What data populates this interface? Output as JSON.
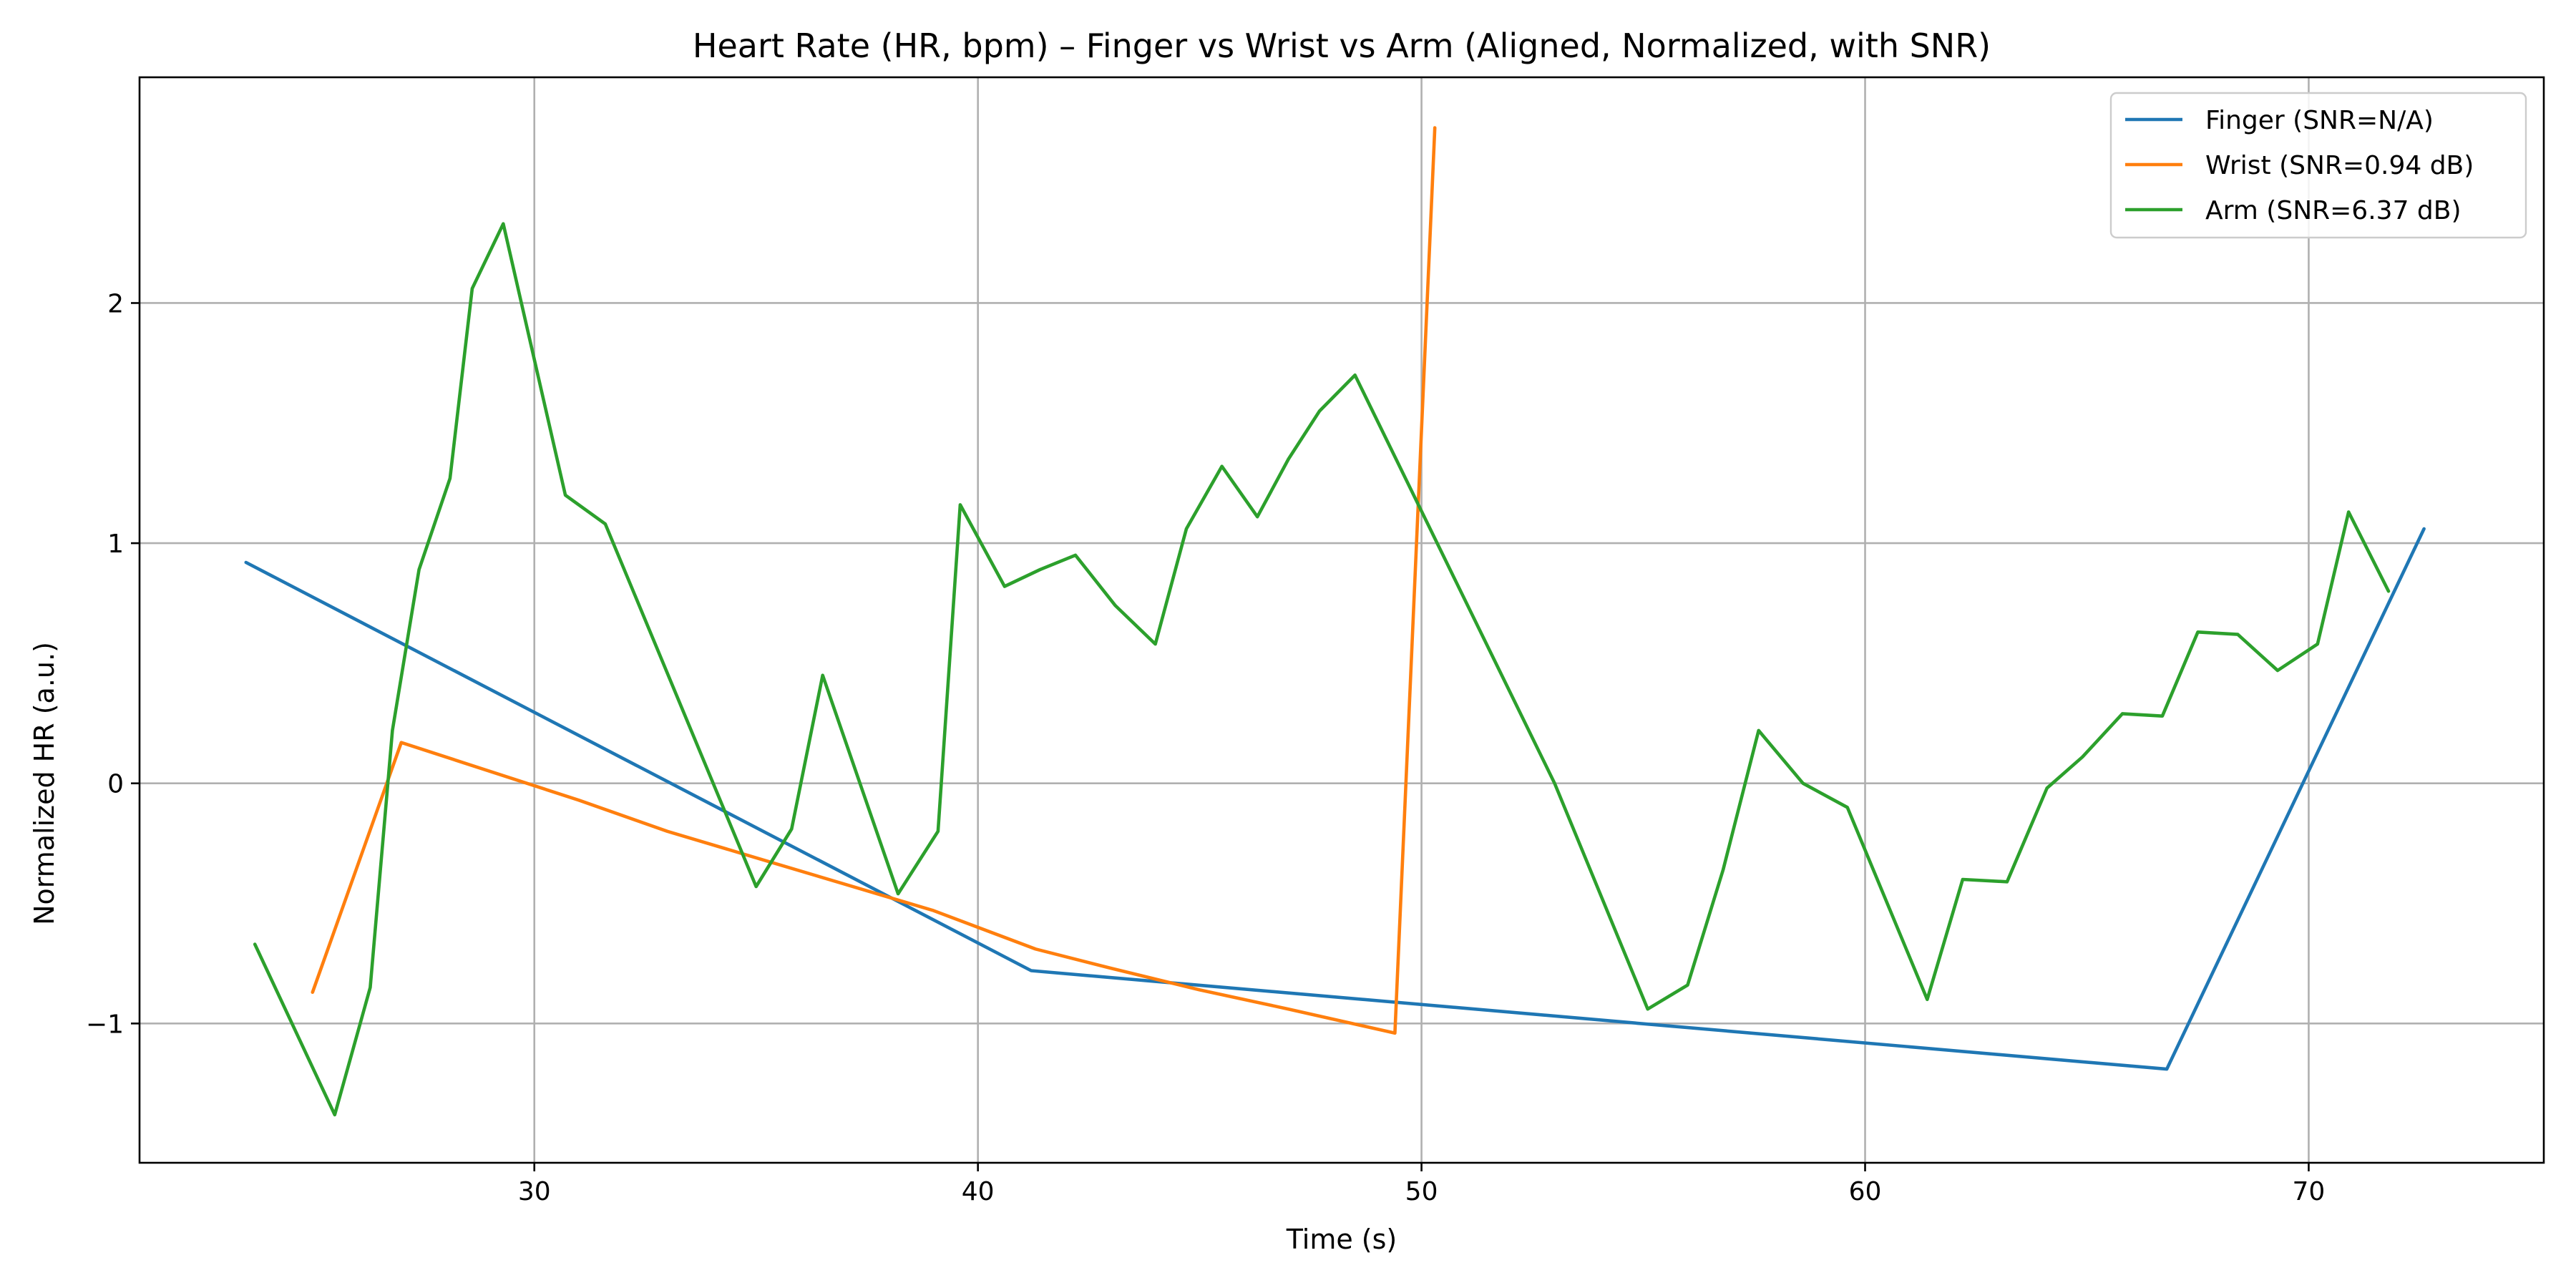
{
  "chart_data": {
    "type": "line",
    "title": "Heart Rate (HR, bpm) – Finger vs Wrist vs Arm (Aligned, Normalized, with SNR)",
    "xlabel": "Time (s)",
    "ylabel": "Normalized HR (a.u.)",
    "xlim": [
      21.1,
      75.3
    ],
    "ylim": [
      -1.58,
      2.94
    ],
    "xticks": [
      30,
      40,
      50,
      60,
      70
    ],
    "yticks": [
      -1,
      0,
      1,
      2
    ],
    "xtick_labels": [
      "30",
      "40",
      "50",
      "60",
      "70"
    ],
    "ytick_labels": [
      "−1",
      "0",
      "1",
      "2"
    ],
    "grid": true,
    "legend_position": "top-right",
    "series": [
      {
        "name": "Finger (SNR=N/A)",
        "color": "#1f77b4",
        "x": [
          23.5,
          41.2,
          66.8,
          72.6
        ],
        "y": [
          0.92,
          -0.78,
          -1.19,
          1.06
        ]
      },
      {
        "name": "Wrist (SNR=0.94 dB)",
        "color": "#ff7f0e",
        "x": [
          25.0,
          27.0,
          29.0,
          31.0,
          33.0,
          35.0,
          37.0,
          39.0,
          41.3,
          43.0,
          45.0,
          47.0,
          49.4,
          50.3
        ],
        "y": [
          -0.87,
          0.17,
          0.05,
          -0.07,
          -0.2,
          -0.31,
          -0.42,
          -0.53,
          -0.69,
          -0.77,
          -0.86,
          -0.94,
          -1.04,
          2.73
        ]
      },
      {
        "name": "Arm (SNR=6.37 dB)",
        "color": "#2ca02c",
        "x": [
          23.7,
          25.5,
          26.3,
          26.8,
          27.4,
          28.1,
          28.6,
          29.3,
          30.7,
          31.6,
          35.0,
          35.8,
          36.5,
          38.2,
          39.1,
          39.6,
          40.6,
          41.4,
          42.2,
          43.1,
          44.0,
          44.7,
          45.5,
          46.3,
          47.0,
          47.7,
          48.5,
          53.0,
          55.1,
          56.0,
          56.8,
          57.6,
          58.6,
          59.6,
          61.4,
          62.2,
          63.2,
          64.1,
          64.9,
          65.8,
          66.7,
          67.5,
          68.4,
          69.3,
          70.2,
          70.9,
          71.8
        ],
        "y": [
          -0.67,
          -1.38,
          -0.85,
          0.22,
          0.89,
          1.27,
          2.06,
          2.33,
          1.2,
          1.08,
          -0.43,
          -0.19,
          0.45,
          -0.46,
          -0.2,
          1.16,
          0.82,
          0.89,
          0.95,
          0.74,
          0.58,
          1.06,
          1.32,
          1.11,
          1.35,
          1.55,
          1.7,
          0.0,
          -0.94,
          -0.84,
          -0.36,
          0.22,
          0.0,
          -0.1,
          -0.9,
          -0.4,
          -0.41,
          -0.02,
          0.11,
          0.29,
          0.28,
          0.63,
          0.62,
          0.47,
          0.58,
          1.13,
          0.8
        ]
      }
    ]
  }
}
